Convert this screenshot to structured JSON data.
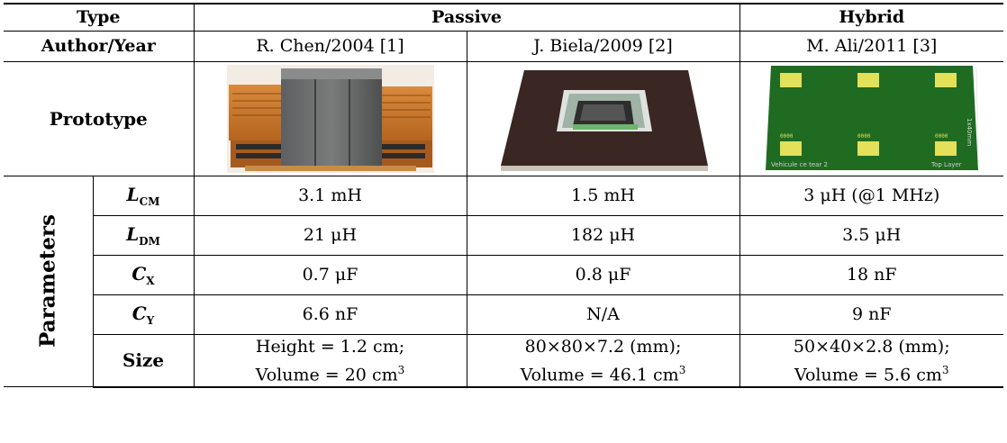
{
  "header": {
    "type_label": "Type",
    "passive_label": "Passive",
    "hybrid_label": "Hybrid",
    "author_label": "Author/Year",
    "authors": [
      "R. Chen/2004 [1]",
      "J. Biela/2009 [2]",
      "M. Ali/2011 [3]"
    ]
  },
  "prototype": {
    "label": "Prototype",
    "images": [
      "chen-filter-prototype-photo",
      "biela-filter-prototype-photo",
      "ali-filter-prototype-photo"
    ],
    "ali_board_text": {
      "dimension": "1x40mm",
      "bottom_left": "Vehicule ce tear 2",
      "bottom_right": "Top Layer",
      "pad_marks": "0000"
    }
  },
  "parameters": {
    "group_label": "Parameters",
    "rows": [
      {
        "symbol": "L",
        "sub": "CM",
        "values": [
          "3.1 mH",
          "1.5 mH",
          "3 μH (@1 MHz)"
        ]
      },
      {
        "symbol": "L",
        "sub": "DM",
        "values": [
          "21 μH",
          "182 μH",
          "3.5 μH"
        ]
      },
      {
        "symbol": "C",
        "sub": "X",
        "values": [
          "0.7 μF",
          "0.8 μF",
          "18 nF"
        ]
      },
      {
        "symbol": "C",
        "sub": "Y",
        "values": [
          "6.6 nF",
          "N/A",
          "9 nF"
        ]
      }
    ],
    "size": {
      "label": "Size",
      "values": [
        {
          "line1": "Height = 1.2 cm;",
          "line2": "Volume = 20 cm",
          "sup": "3"
        },
        {
          "line1": "80×80×7.2 (mm);",
          "line2": "Volume = 46.1 cm",
          "sup": "3"
        },
        {
          "line1": "50×40×2.8 (mm);",
          "line2": "Volume = 5.6 cm",
          "sup": "3"
        }
      ]
    }
  }
}
